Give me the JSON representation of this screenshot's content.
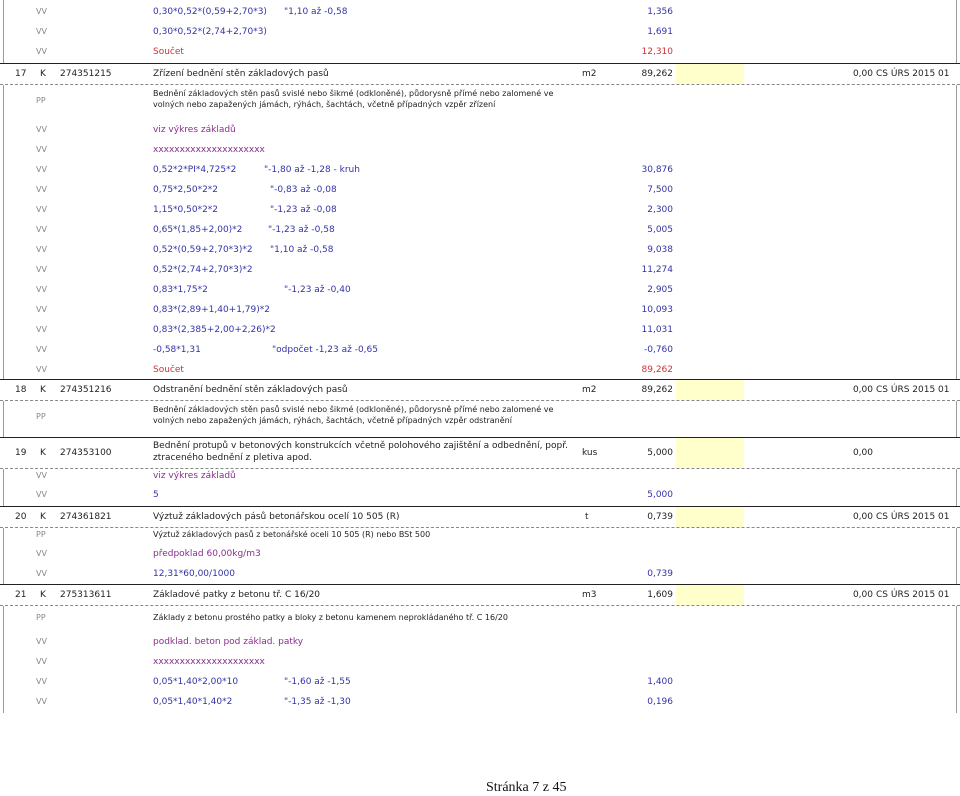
{
  "rows": [
    {
      "code": "VV",
      "desc": "0,30*0,52*(0,59+2,70*3)",
      "note": "\"1,10 až -0,58",
      "qty": "1,356"
    },
    {
      "code": "VV",
      "desc": "0,30*0,52*(2,74+2,70*3)",
      "qty": "1,691"
    },
    {
      "code": "VV",
      "desc": "Součet",
      "qty": "12,310"
    },
    {
      "num": "17",
      "k": "K",
      "id": "274351215",
      "desc": "Zřízení bednění stěn základových pasů",
      "unit": "m2",
      "qty": "89,262",
      "price": "0,00",
      "src": "CS ÚRS 2015 01"
    },
    {
      "code": "PP",
      "desc": "Bednění základových stěn pasů svislé nebo šikmé (odkloněné), půdorysně přímé nebo zalomené ve volných nebo zapažených jámách, rýhách, šachtách, včetně případných vzpěr zřízení"
    },
    {
      "code": "VV",
      "desc": "viz výkres základů"
    },
    {
      "code": "VV",
      "desc": "xxxxxxxxxxxxxxxxxxxxx"
    },
    {
      "code": "VV",
      "desc": "0,52*2*PI*4,725*2",
      "note": "\"-1,80 až -1,28 - kruh",
      "qty": "30,876"
    },
    {
      "code": "VV",
      "desc": "0,75*2,50*2*2",
      "note": "\"-0,83 až -0,08",
      "qty": "7,500"
    },
    {
      "code": "VV",
      "desc": "1,15*0,50*2*2",
      "note": "\"-1,23 až -0,08",
      "qty": "2,300"
    },
    {
      "code": "VV",
      "desc": "0,65*(1,85+2,00)*2",
      "note": "\"-1,23 až -0,58",
      "qty": "5,005"
    },
    {
      "code": "VV",
      "desc": "0,52*(0,59+2,70*3)*2",
      "note": "\"1,10 až -0,58",
      "qty": "9,038"
    },
    {
      "code": "VV",
      "desc": "0,52*(2,74+2,70*3)*2",
      "qty": "11,274"
    },
    {
      "code": "VV",
      "desc": "0,83*1,75*2",
      "note": "\"-1,23 až -0,40",
      "qty": "2,905"
    },
    {
      "code": "VV",
      "desc": "0,83*(2,89+1,40+1,79)*2",
      "qty": "10,093"
    },
    {
      "code": "VV",
      "desc": "0,83*(2,385+2,00+2,26)*2",
      "qty": "11,031"
    },
    {
      "code": "VV",
      "desc": "-0,58*1,31",
      "note": "\"odpočet -1,23 až -0,65",
      "qty": "-0,760"
    },
    {
      "code": "VV",
      "desc": "Součet",
      "qty": "89,262"
    },
    {
      "num": "18",
      "k": "K",
      "id": "274351216",
      "desc": "Odstranění bednění stěn základových pasů",
      "unit": "m2",
      "qty": "89,262",
      "price": "0,00",
      "src": "CS ÚRS 2015 01"
    },
    {
      "code": "PP",
      "desc": "Bednění základových stěn pasů svislé nebo šikmé (odkloněné), půdorysně přímé nebo zalomené ve volných nebo zapažených jámách, rýhách, šachtách, včetně případných vzpěr odstranění"
    },
    {
      "num": "19",
      "k": "K",
      "id": "274353100",
      "desc": "Bednění protupů v betonových konstrukcích  včetně polohového zajištění a odbednění, popř. ztraceného bednění z pletiva apod.",
      "unit": "kus",
      "qty": "5,000",
      "price": "0,00"
    },
    {
      "code": "VV",
      "desc": "viz výkres základů"
    },
    {
      "code": "VV",
      "desc": "5",
      "qty": "5,000"
    },
    {
      "num": "20",
      "k": "K",
      "id": "274361821",
      "desc": "Výztuž základových pásů betonářskou ocelí 10 505 (R)",
      "unit": "t",
      "qty": "0,739",
      "price": "0,00",
      "src": "CS ÚRS 2015 01"
    },
    {
      "code": "PP",
      "desc": "Výztuž základových pasů z betonářské oceli 10 505 (R) nebo BSt 500"
    },
    {
      "code": "VV",
      "desc": "předpoklad 60,00kg/m3"
    },
    {
      "code": "VV",
      "desc": "12,31*60,00/1000",
      "qty": "0,739"
    },
    {
      "num": "21",
      "k": "K",
      "id": "275313611",
      "desc": "Základové patky z betonu tř. C 16/20",
      "unit": "m3",
      "qty": "1,609",
      "price": "0,00",
      "src": "CS ÚRS 2015 01"
    },
    {
      "code": "PP",
      "desc": "Základy z betonu prostého patky a bloky z betonu kamenem neprokládaného tř. C 16/20"
    },
    {
      "code": "VV",
      "desc": "podklad. beton pod základ. patky"
    },
    {
      "code": "VV",
      "desc": "xxxxxxxxxxxxxxxxxxxxx"
    },
    {
      "code": "VV",
      "desc": "0,05*1,40*2,00*10",
      "note": "\"-1,60 až -1,55",
      "qty": "1,400"
    },
    {
      "code": "VV",
      "desc": "0,05*1,40*1,40*2",
      "note": "\"-1,35 až -1,30",
      "qty": "0,196"
    }
  ],
  "footer": "Stránka 7 z 45",
  "colors": {
    "vv": "#3333aa",
    "sum": "#cc3333",
    "comment": "#8a2e8e",
    "price_highlight": "#ffffcc"
  }
}
